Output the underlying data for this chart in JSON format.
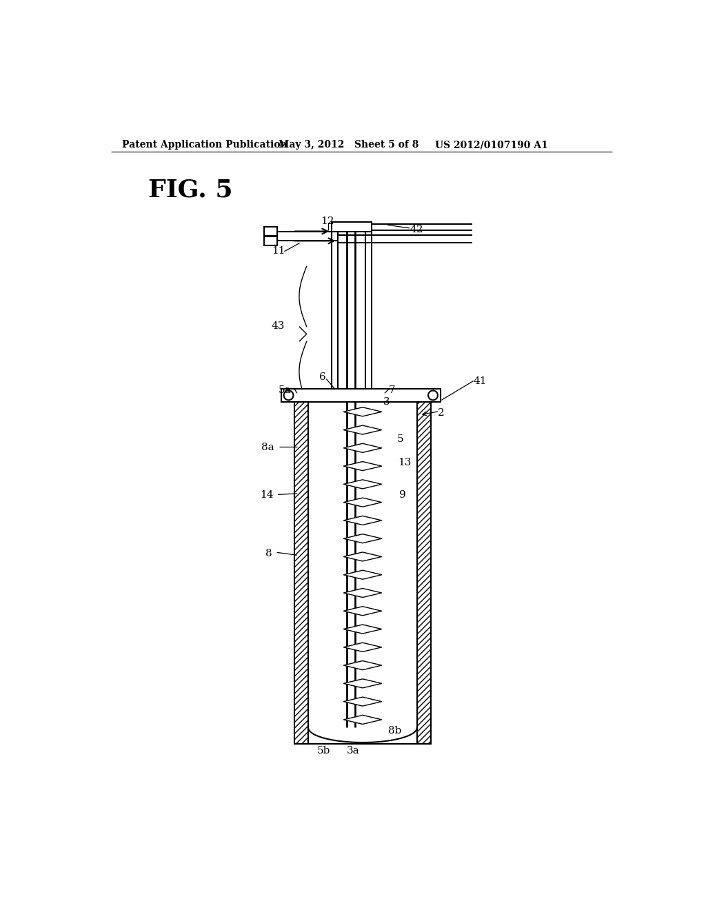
{
  "bg_color": "#ffffff",
  "header_left": "Patent Application Publication",
  "header_mid": "May 3, 2012   Sheet 5 of 8",
  "header_right": "US 2012/0107190 A1",
  "fig_label": "FIG. 5",
  "lw_main": 1.5,
  "lw_thin": 1.0,
  "label_fs": 11
}
